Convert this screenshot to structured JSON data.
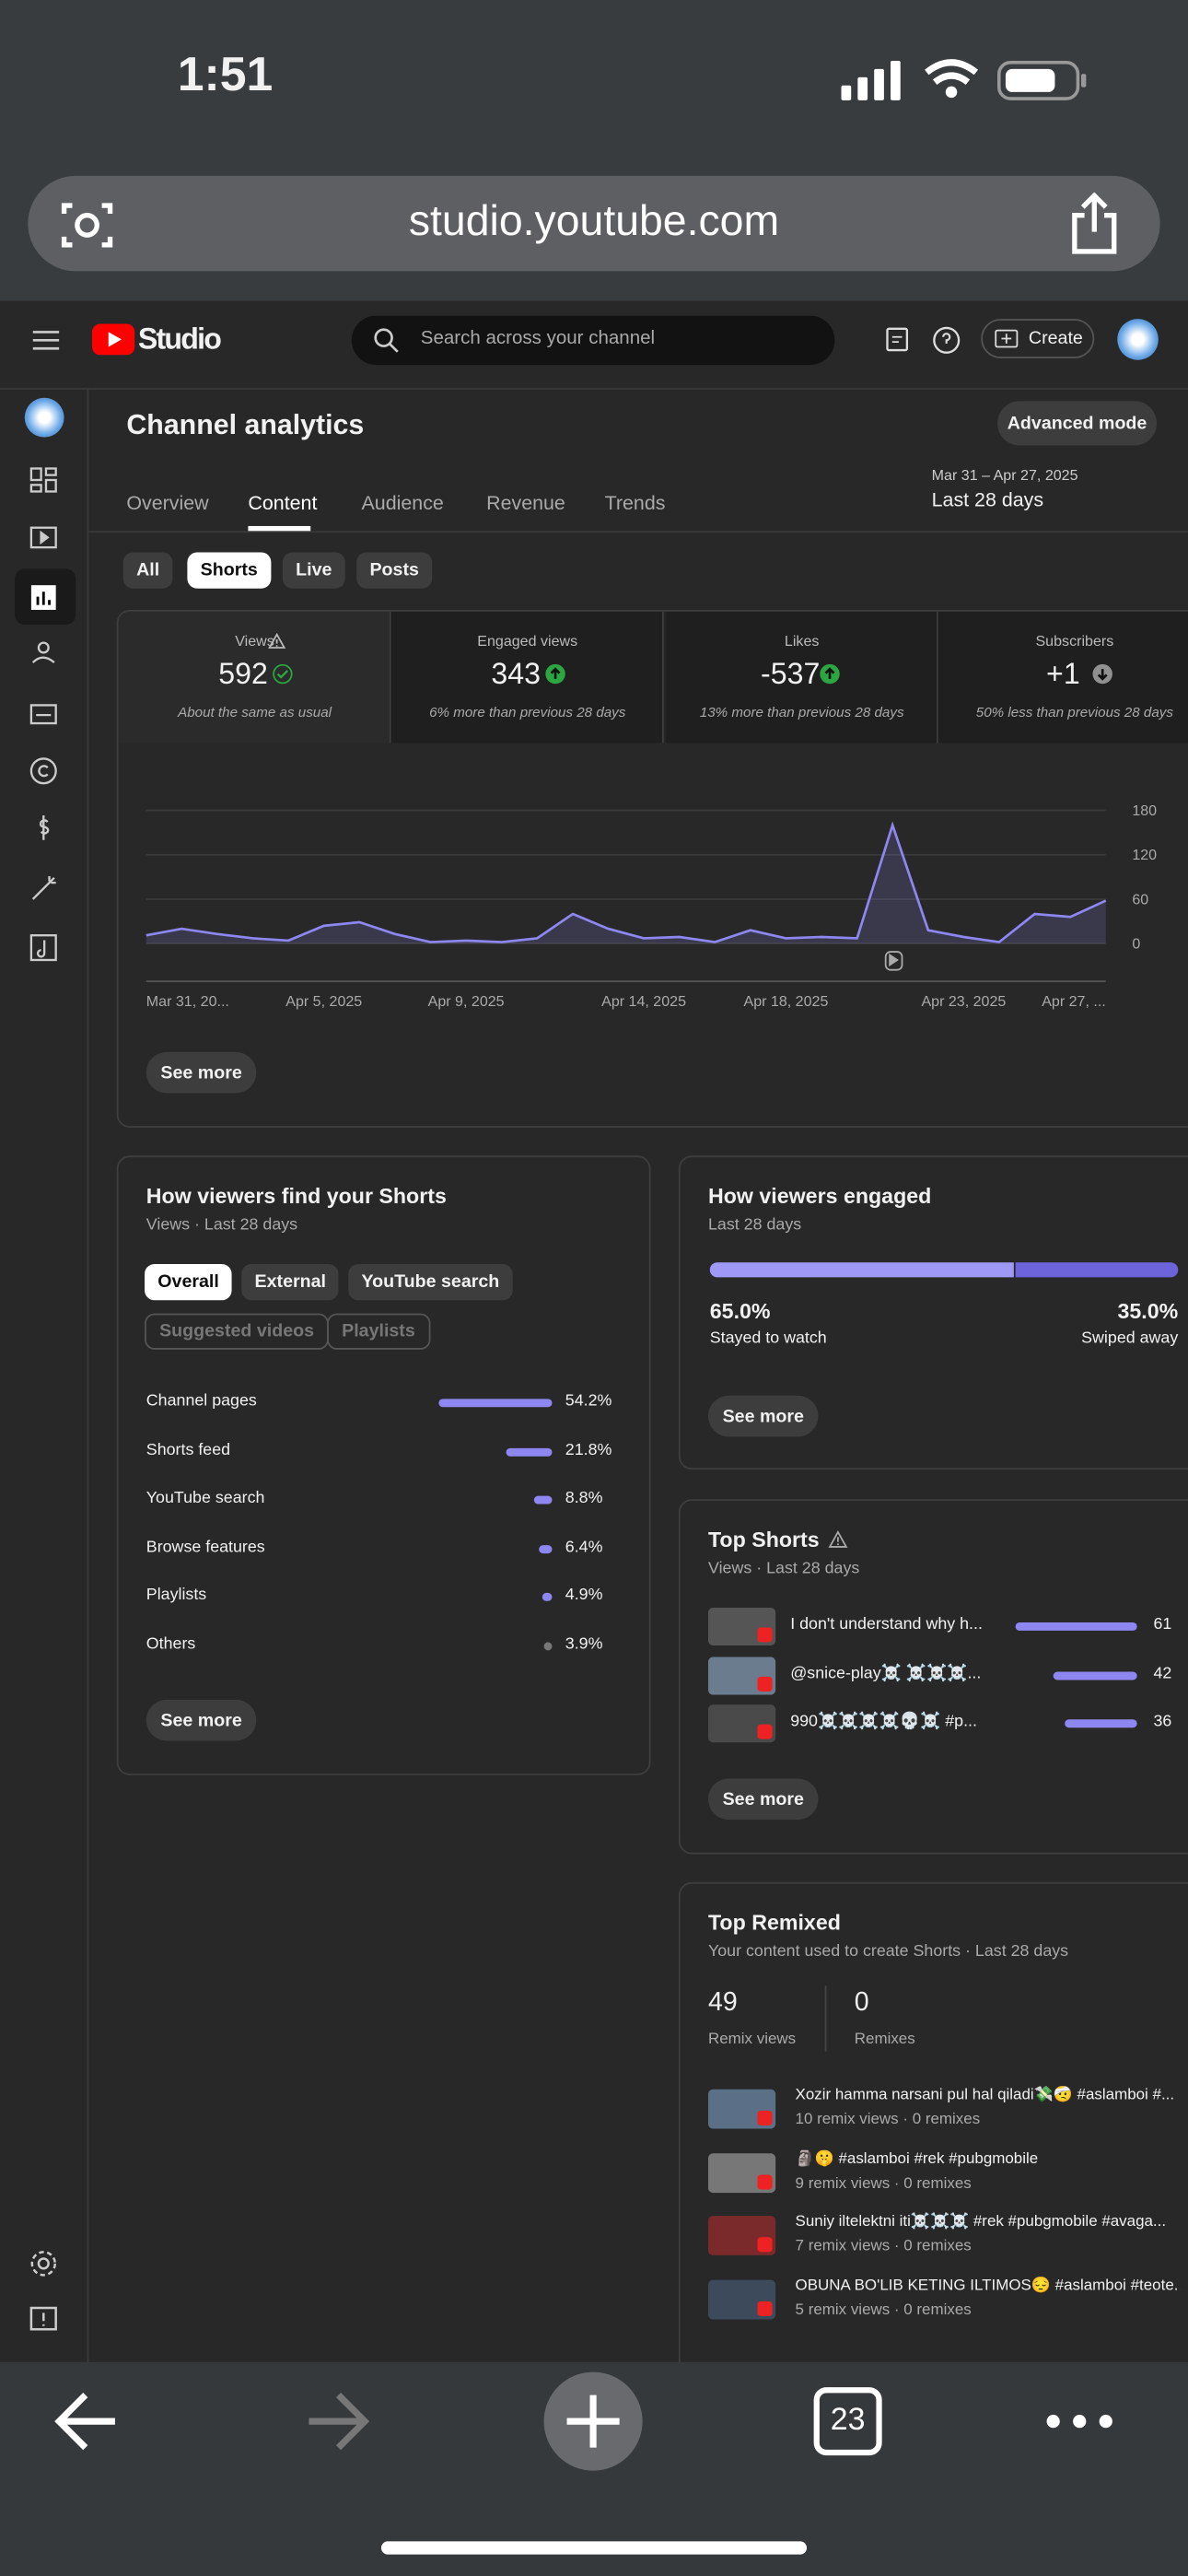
{
  "status": {
    "time": "1:51"
  },
  "browser": {
    "url": "studio.youtube.com",
    "tabs": "23"
  },
  "header": {
    "logo": "Studio",
    "search": "Search across your channel",
    "create": "Create"
  },
  "page": {
    "title": "Channel analytics",
    "advanced": "Advanced mode",
    "tabs": [
      "Overview",
      "Content",
      "Audience",
      "Revenue",
      "Trends"
    ],
    "date_range": "Mar 31 – Apr 27, 2025",
    "period": "Last 28 days",
    "filters": [
      "All",
      "Shorts",
      "Live",
      "Posts"
    ]
  },
  "kpis": [
    {
      "label": "Views",
      "value": "592",
      "note": "About the same as usual"
    },
    {
      "label": "Engaged views",
      "value": "343",
      "note": "6% more than previous 28 days"
    },
    {
      "label": "Likes",
      "value": "-537",
      "note": "13% more than previous 28 days"
    },
    {
      "label": "Subscribers",
      "value": "+1",
      "note": "50% less than previous 28 days"
    }
  ],
  "chart_data": {
    "type": "line",
    "categories": [
      "Mar 31, 20...",
      null,
      null,
      null,
      null,
      "Apr 5, 2025",
      null,
      null,
      null,
      "Apr 9, 2025",
      null,
      null,
      null,
      null,
      "Apr 14, 2025",
      null,
      null,
      null,
      "Apr 18, 2025",
      null,
      null,
      null,
      null,
      "Apr 23, 2025",
      null,
      null,
      null,
      "Apr 27, ..."
    ],
    "values": [
      11,
      20,
      13,
      7,
      4,
      24,
      29,
      13,
      2,
      4,
      2,
      7,
      40,
      20,
      7,
      9,
      2,
      18,
      7,
      9,
      7,
      160,
      18,
      9,
      2,
      40,
      36,
      58
    ],
    "color": "#8f87f1",
    "ylim": [
      0,
      180
    ],
    "yticks": [
      0,
      60,
      120,
      180
    ],
    "grid": true
  },
  "see_more": "See more",
  "traffic": {
    "title": "How viewers find your Shorts",
    "subtitle": "Views · Last 28 days",
    "chips": [
      "Overall",
      "External",
      "YouTube search",
      "Suggested videos",
      "Playlists"
    ],
    "labels": [
      "Channel pages",
      "Shorts feed",
      "YouTube search",
      "Browse features",
      "Playlists",
      "Others"
    ],
    "values": [
      54.2,
      21.8,
      8.8,
      6.4,
      4.9,
      3.9
    ],
    "value_labels": [
      "54.2%",
      "21.8%",
      "8.8%",
      "6.4%",
      "4.9%",
      "3.9%"
    ]
  },
  "engagement": {
    "title": "How viewers engaged",
    "subtitle": "Last 28 days",
    "values": [
      65.0,
      35.0
    ],
    "value_labels": [
      "65.0%",
      "35.0%"
    ],
    "labels": [
      "Stayed to watch",
      "Swiped away"
    ]
  },
  "top_shorts": {
    "title": "Top Shorts",
    "subtitle": "Views · Last 28 days",
    "titles": [
      "I don't understand why h...",
      "@snice-play☠️ ☠️☠️☠️...",
      "990☠️☠️☠️☠️💀☠️ #p..."
    ],
    "values": [
      61,
      42,
      36
    ]
  },
  "top_remixed": {
    "title": "Top Remixed",
    "subtitle": "Your content used to create Shorts · Last 28 days",
    "stats": [
      {
        "value": 49,
        "label": "Remix views"
      },
      {
        "value": 0,
        "label": "Remixes"
      }
    ],
    "items": [
      {
        "title": "Xozir hamma narsani pul hal qiladi💸🤕 #aslamboi #...",
        "meta": "10 remix views · 0 remixes"
      },
      {
        "title": "🗿🤫 #aslamboi #rek #pubgmobile",
        "meta": "9 remix views · 0 remixes"
      },
      {
        "title": "Suniy iltelektni iti☠️☠️☠️ #rek #pubgmobile #avaga...",
        "meta": "7 remix views · 0 remixes"
      },
      {
        "title": "OBUNA BO'LIB KETING ILTIMOS😔 #aslamboi #teote...",
        "meta": "5 remix views · 0 remixes"
      }
    ]
  }
}
